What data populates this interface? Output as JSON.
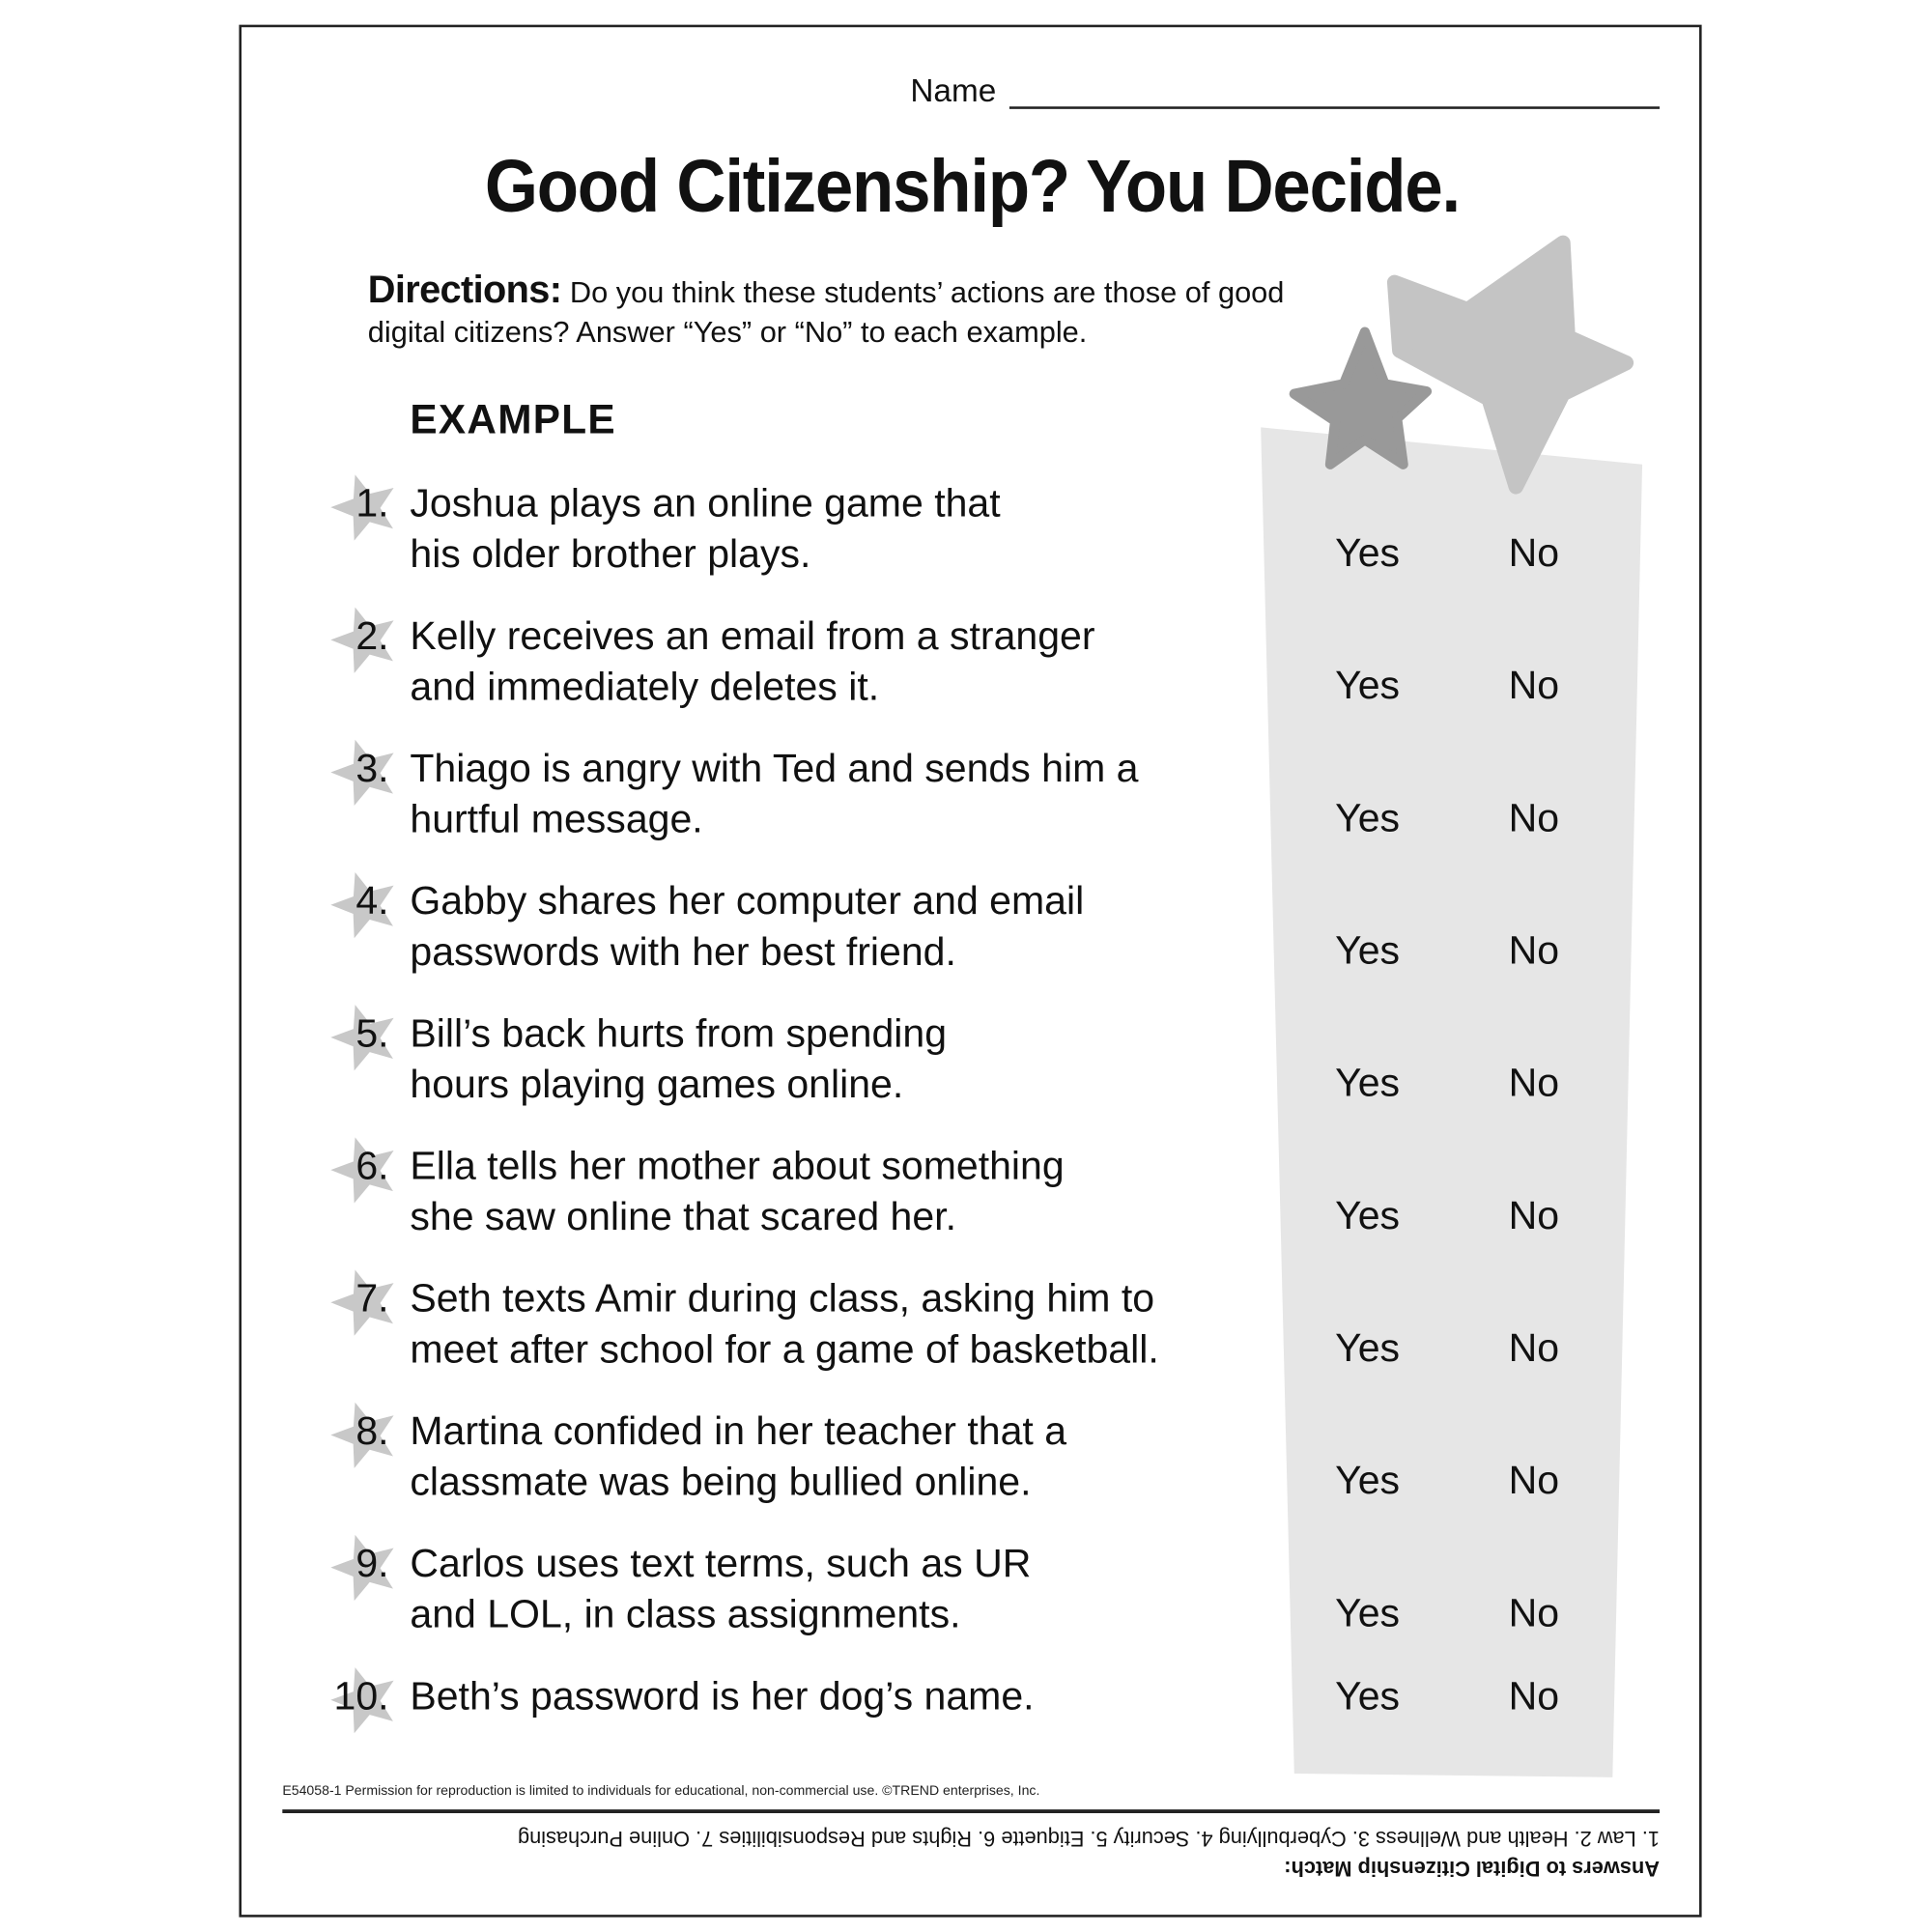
{
  "header": {
    "name_label": "Name"
  },
  "title": "Good Citizenship? You Decide.",
  "directions": {
    "label": "Directions:",
    "text_line1": " Do you think these students’ actions are those of good",
    "text_line2": "digital citizens? Answer “Yes” or “No” to each example."
  },
  "example_label": "EXAMPLE",
  "answer_options": {
    "yes": "Yes",
    "no": "No"
  },
  "items": [
    {
      "num": "1.",
      "line1": "Joshua plays an online game that",
      "line2": "his older brother plays."
    },
    {
      "num": "2.",
      "line1": "Kelly receives an email from a stranger",
      "line2": "and immediately deletes it."
    },
    {
      "num": "3.",
      "line1": "Thiago is angry with Ted and sends him a",
      "line2": "hurtful message."
    },
    {
      "num": "4.",
      "line1": "Gabby shares her computer and email",
      "line2": "passwords with her best friend."
    },
    {
      "num": "5.",
      "line1": "Bill’s back hurts from spending",
      "line2": "hours playing games online."
    },
    {
      "num": "6.",
      "line1": "Ella tells her mother about something",
      "line2": "she saw online that scared her."
    },
    {
      "num": "7.",
      "line1": "Seth texts Amir during class, asking him to",
      "line2": "meet after school for a game of basketball."
    },
    {
      "num": "8.",
      "line1": "Martina confided in her teacher that a",
      "line2": "classmate was being bullied online."
    },
    {
      "num": "9.",
      "line1": "Carlos uses text terms, such as UR",
      "line2": "and LOL, in class assignments."
    },
    {
      "num": "10.",
      "line1": "Beth’s password is her dog’s name.",
      "line2": ""
    }
  ],
  "footer": {
    "permission": "E54058-1  Permission for reproduction is limited to individuals for educational, non-commercial use. ©TREND enterprises, Inc.",
    "answers_heading": "Answers to Digital Citizenship Match:",
    "answers_text": "1. Law  2. Health and Wellness  3. Cyberbullying  4. Security  5. Etiquette  6. Rights and Responsibilities  7. Online Purchasing"
  },
  "colors": {
    "band": "#e6e6e6",
    "star_light": "#c4c4c4",
    "star_dark": "#999999",
    "number_star": "#c8c8c8"
  }
}
